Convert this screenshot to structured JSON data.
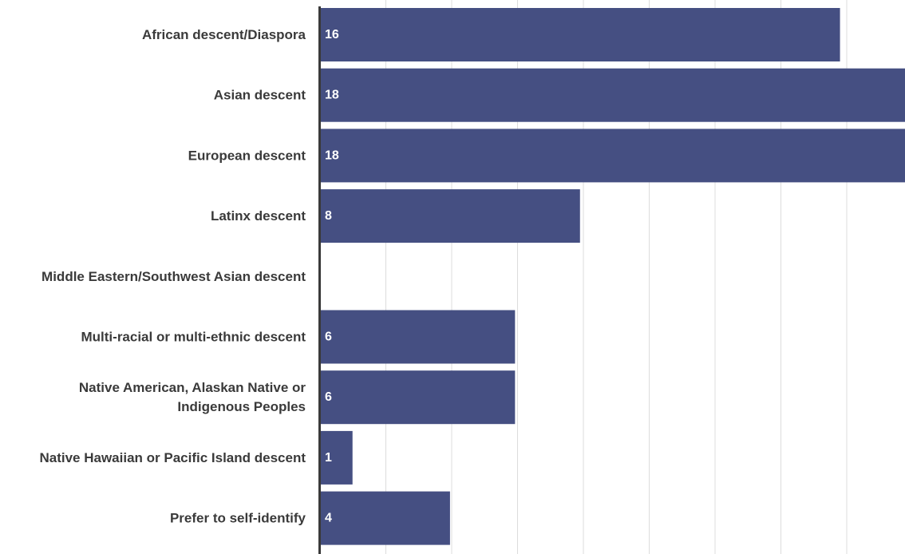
{
  "chart_data": {
    "type": "bar",
    "orientation": "horizontal",
    "categories": [
      "African descent/Diaspora",
      "Asian descent",
      "European descent",
      "Latinx descent",
      "Middle Eastern/Southwest Asian descent",
      "Multi-racial or multi-ethnic descent",
      "Native American, Alaskan Native or Indigenous Peoples",
      "Native Hawaiian or Pacific Island descent",
      "Prefer to self-identify"
    ],
    "category_lines": [
      [
        "African descent/Diaspora"
      ],
      [
        "Asian descent"
      ],
      [
        "European descent"
      ],
      [
        "Latinx descent"
      ],
      [
        "Middle Eastern/Southwest Asian descent"
      ],
      [
        "Multi-racial or multi-ethnic descent"
      ],
      [
        "Native American, Alaskan Native or",
        "Indigenous Peoples"
      ],
      [
        "Native Hawaiian or Pacific Island descent"
      ],
      [
        "Prefer to self-identify"
      ]
    ],
    "values": [
      16,
      18,
      18,
      8,
      0,
      6,
      6,
      1,
      4
    ],
    "value_labels": [
      "16",
      "18",
      "18",
      "8",
      "",
      "6",
      "6",
      "1",
      "4"
    ],
    "xlim": [
      0,
      18
    ],
    "grid": true,
    "title": "",
    "xlabel": "",
    "ylabel": "",
    "colors": {
      "bar": "#454f82",
      "grid": "#dcdcdc",
      "axis": "#3a3a3a",
      "value_text": "#ffffff",
      "label_text": "#3a3a3a"
    }
  }
}
